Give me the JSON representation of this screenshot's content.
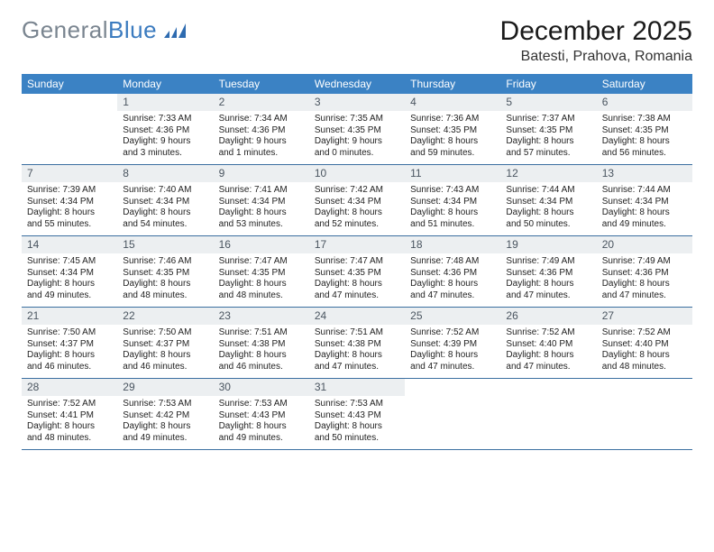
{
  "logo": {
    "text_gray": "General",
    "text_blue": "Blue"
  },
  "title": "December 2025",
  "location": "Batesti, Prahova, Romania",
  "colors": {
    "header_bg": "#3b82c4",
    "header_text": "#ffffff",
    "daynum_bg": "#eceff1",
    "daynum_text": "#4a5560",
    "week_divider": "#3b6fa0",
    "body_text": "#222222",
    "logo_gray": "#7a8590",
    "logo_blue": "#3b7bbf"
  },
  "fonts": {
    "title_size_pt": 22,
    "location_size_pt": 12,
    "dayheader_size_pt": 9,
    "daynum_size_pt": 9,
    "body_size_pt": 7.5
  },
  "day_names": [
    "Sunday",
    "Monday",
    "Tuesday",
    "Wednesday",
    "Thursday",
    "Friday",
    "Saturday"
  ],
  "weeks": [
    [
      {
        "n": "",
        "lines": []
      },
      {
        "n": "1",
        "lines": [
          "Sunrise: 7:33 AM",
          "Sunset: 4:36 PM",
          "Daylight: 9 hours",
          "and 3 minutes."
        ]
      },
      {
        "n": "2",
        "lines": [
          "Sunrise: 7:34 AM",
          "Sunset: 4:36 PM",
          "Daylight: 9 hours",
          "and 1 minutes."
        ]
      },
      {
        "n": "3",
        "lines": [
          "Sunrise: 7:35 AM",
          "Sunset: 4:35 PM",
          "Daylight: 9 hours",
          "and 0 minutes."
        ]
      },
      {
        "n": "4",
        "lines": [
          "Sunrise: 7:36 AM",
          "Sunset: 4:35 PM",
          "Daylight: 8 hours",
          "and 59 minutes."
        ]
      },
      {
        "n": "5",
        "lines": [
          "Sunrise: 7:37 AM",
          "Sunset: 4:35 PM",
          "Daylight: 8 hours",
          "and 57 minutes."
        ]
      },
      {
        "n": "6",
        "lines": [
          "Sunrise: 7:38 AM",
          "Sunset: 4:35 PM",
          "Daylight: 8 hours",
          "and 56 minutes."
        ]
      }
    ],
    [
      {
        "n": "7",
        "lines": [
          "Sunrise: 7:39 AM",
          "Sunset: 4:34 PM",
          "Daylight: 8 hours",
          "and 55 minutes."
        ]
      },
      {
        "n": "8",
        "lines": [
          "Sunrise: 7:40 AM",
          "Sunset: 4:34 PM",
          "Daylight: 8 hours",
          "and 54 minutes."
        ]
      },
      {
        "n": "9",
        "lines": [
          "Sunrise: 7:41 AM",
          "Sunset: 4:34 PM",
          "Daylight: 8 hours",
          "and 53 minutes."
        ]
      },
      {
        "n": "10",
        "lines": [
          "Sunrise: 7:42 AM",
          "Sunset: 4:34 PM",
          "Daylight: 8 hours",
          "and 52 minutes."
        ]
      },
      {
        "n": "11",
        "lines": [
          "Sunrise: 7:43 AM",
          "Sunset: 4:34 PM",
          "Daylight: 8 hours",
          "and 51 minutes."
        ]
      },
      {
        "n": "12",
        "lines": [
          "Sunrise: 7:44 AM",
          "Sunset: 4:34 PM",
          "Daylight: 8 hours",
          "and 50 minutes."
        ]
      },
      {
        "n": "13",
        "lines": [
          "Sunrise: 7:44 AM",
          "Sunset: 4:34 PM",
          "Daylight: 8 hours",
          "and 49 minutes."
        ]
      }
    ],
    [
      {
        "n": "14",
        "lines": [
          "Sunrise: 7:45 AM",
          "Sunset: 4:34 PM",
          "Daylight: 8 hours",
          "and 49 minutes."
        ]
      },
      {
        "n": "15",
        "lines": [
          "Sunrise: 7:46 AM",
          "Sunset: 4:35 PM",
          "Daylight: 8 hours",
          "and 48 minutes."
        ]
      },
      {
        "n": "16",
        "lines": [
          "Sunrise: 7:47 AM",
          "Sunset: 4:35 PM",
          "Daylight: 8 hours",
          "and 48 minutes."
        ]
      },
      {
        "n": "17",
        "lines": [
          "Sunrise: 7:47 AM",
          "Sunset: 4:35 PM",
          "Daylight: 8 hours",
          "and 47 minutes."
        ]
      },
      {
        "n": "18",
        "lines": [
          "Sunrise: 7:48 AM",
          "Sunset: 4:36 PM",
          "Daylight: 8 hours",
          "and 47 minutes."
        ]
      },
      {
        "n": "19",
        "lines": [
          "Sunrise: 7:49 AM",
          "Sunset: 4:36 PM",
          "Daylight: 8 hours",
          "and 47 minutes."
        ]
      },
      {
        "n": "20",
        "lines": [
          "Sunrise: 7:49 AM",
          "Sunset: 4:36 PM",
          "Daylight: 8 hours",
          "and 47 minutes."
        ]
      }
    ],
    [
      {
        "n": "21",
        "lines": [
          "Sunrise: 7:50 AM",
          "Sunset: 4:37 PM",
          "Daylight: 8 hours",
          "and 46 minutes."
        ]
      },
      {
        "n": "22",
        "lines": [
          "Sunrise: 7:50 AM",
          "Sunset: 4:37 PM",
          "Daylight: 8 hours",
          "and 46 minutes."
        ]
      },
      {
        "n": "23",
        "lines": [
          "Sunrise: 7:51 AM",
          "Sunset: 4:38 PM",
          "Daylight: 8 hours",
          "and 46 minutes."
        ]
      },
      {
        "n": "24",
        "lines": [
          "Sunrise: 7:51 AM",
          "Sunset: 4:38 PM",
          "Daylight: 8 hours",
          "and 47 minutes."
        ]
      },
      {
        "n": "25",
        "lines": [
          "Sunrise: 7:52 AM",
          "Sunset: 4:39 PM",
          "Daylight: 8 hours",
          "and 47 minutes."
        ]
      },
      {
        "n": "26",
        "lines": [
          "Sunrise: 7:52 AM",
          "Sunset: 4:40 PM",
          "Daylight: 8 hours",
          "and 47 minutes."
        ]
      },
      {
        "n": "27",
        "lines": [
          "Sunrise: 7:52 AM",
          "Sunset: 4:40 PM",
          "Daylight: 8 hours",
          "and 48 minutes."
        ]
      }
    ],
    [
      {
        "n": "28",
        "lines": [
          "Sunrise: 7:52 AM",
          "Sunset: 4:41 PM",
          "Daylight: 8 hours",
          "and 48 minutes."
        ]
      },
      {
        "n": "29",
        "lines": [
          "Sunrise: 7:53 AM",
          "Sunset: 4:42 PM",
          "Daylight: 8 hours",
          "and 49 minutes."
        ]
      },
      {
        "n": "30",
        "lines": [
          "Sunrise: 7:53 AM",
          "Sunset: 4:43 PM",
          "Daylight: 8 hours",
          "and 49 minutes."
        ]
      },
      {
        "n": "31",
        "lines": [
          "Sunrise: 7:53 AM",
          "Sunset: 4:43 PM",
          "Daylight: 8 hours",
          "and 50 minutes."
        ]
      },
      {
        "n": "",
        "lines": []
      },
      {
        "n": "",
        "lines": []
      },
      {
        "n": "",
        "lines": []
      }
    ]
  ]
}
